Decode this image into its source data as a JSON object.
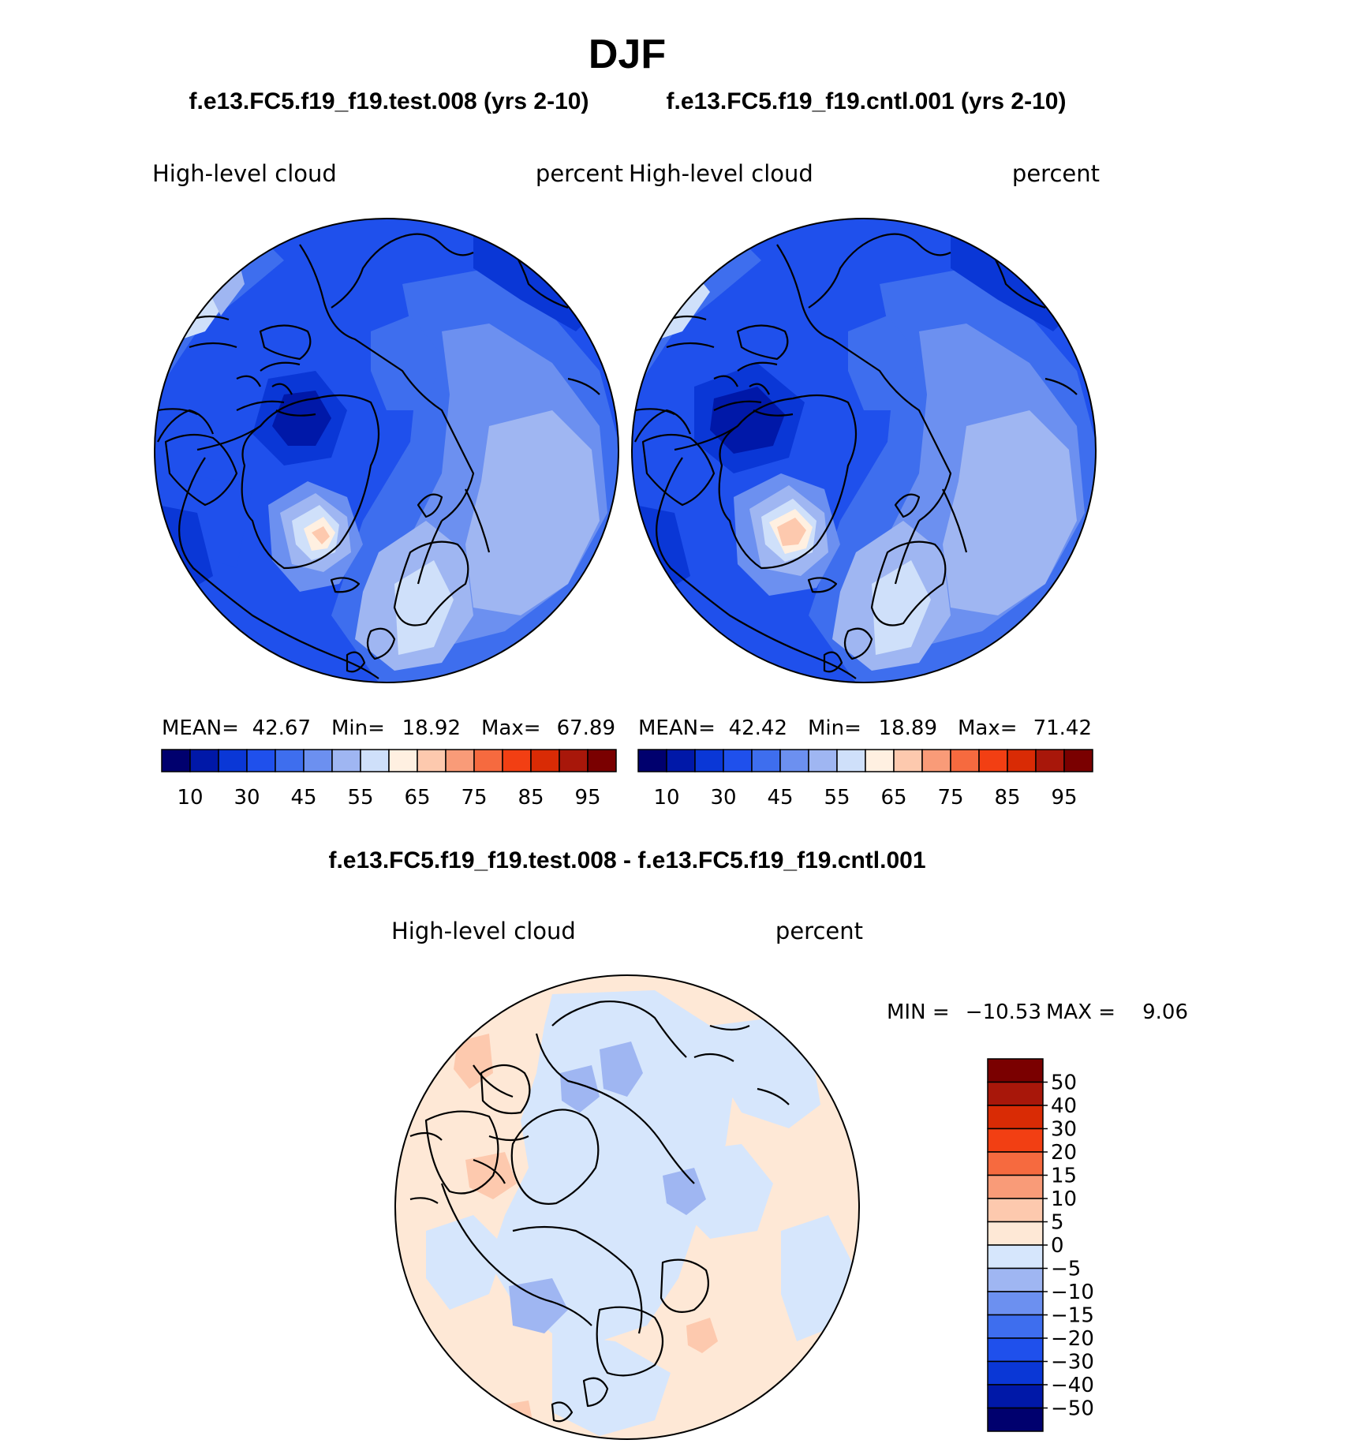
{
  "title": "DJF",
  "colors": {
    "abs_palette": [
      "#00006e",
      "#0018a8",
      "#0a37d6",
      "#1f50ec",
      "#3e6eee",
      "#6c90f0",
      "#9fb6f2",
      "#cfe0fa",
      "#fff0e1",
      "#fdc9ae",
      "#f99b78",
      "#f66a3f",
      "#f23f13",
      "#d92b05",
      "#a8170a",
      "#7a0000"
    ],
    "diff_palette": [
      "#00006e",
      "#0018a8",
      "#0a37d6",
      "#1f50ec",
      "#3e6eee",
      "#6c90f0",
      "#9fb6f2",
      "#d6e6fc",
      "#fee8d6",
      "#fdc9ae",
      "#f99b78",
      "#f66a3f",
      "#f23f13",
      "#d92b05",
      "#a8170a",
      "#7a0000"
    ],
    "land_outline": "#000000"
  },
  "panels": [
    {
      "case": "f.e13.FC5.f19_f19.test.008 (yrs 2-10)",
      "variable": "High-level cloud",
      "units": "percent",
      "stats": {
        "mean_label": "MEAN=",
        "mean": "42.67",
        "min_label": "Min=",
        "min": "18.92",
        "max_label": "Max=",
        "max": "67.89"
      },
      "colorbar_labels": [
        "10",
        "30",
        "45",
        "55",
        "65",
        "75",
        "85",
        "95"
      ]
    },
    {
      "case": "f.e13.FC5.f19_f19.cntl.001 (yrs 2-10)",
      "variable": "High-level cloud",
      "units": "percent",
      "stats": {
        "mean_label": "MEAN=",
        "mean": "42.42",
        "min_label": "Min=",
        "min": "18.89",
        "max_label": "Max=",
        "max": "71.42"
      },
      "colorbar_labels": [
        "10",
        "30",
        "45",
        "55",
        "65",
        "75",
        "85",
        "95"
      ]
    }
  ],
  "difference": {
    "title": "f.e13.FC5.f19_f19.test.008 - f.e13.FC5.f19_f19.cntl.001",
    "variable": "High-level cloud",
    "units": "percent",
    "min_label": "MIN =",
    "min": "−10.53",
    "max_label": "MAX =",
    "max": "9.06",
    "colorbar_labels": [
      "50",
      "40",
      "30",
      "20",
      "15",
      "10",
      "5",
      "0",
      "−5",
      "−10",
      "−15",
      "−20",
      "−30",
      "−40",
      "−50"
    ]
  }
}
